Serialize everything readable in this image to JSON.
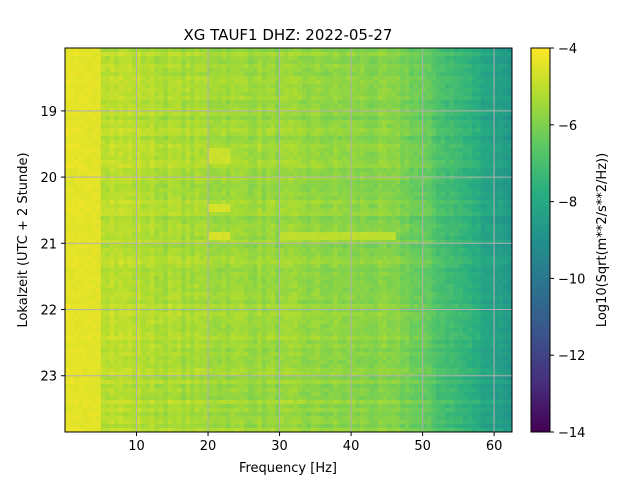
{
  "chart_data": {
    "type": "heatmap",
    "title": "XG TAUF1  DHZ: 2022-05-27",
    "xlabel": "Frequency [Hz]",
    "ylabel": "Lokalzeit (UTC + 2 Stunde)",
    "xlim": [
      0,
      62.5
    ],
    "ylim": [
      18.05,
      23.85
    ],
    "y_inverted": true,
    "x_ticks": [
      10,
      20,
      30,
      40,
      50,
      60
    ],
    "x_tick_labels": [
      "10",
      "20",
      "30",
      "40",
      "50",
      "60"
    ],
    "y_ticks": [
      19,
      20,
      21,
      22,
      23
    ],
    "y_tick_labels": [
      "19",
      "20",
      "21",
      "22",
      "23"
    ],
    "grid": true,
    "colormap": "viridis",
    "colorbar": {
      "label": "Log10(Sqrt(m**2/s**2/Hz))",
      "range": [
        -14,
        -4
      ],
      "ticks": [
        -4,
        -6,
        -8,
        -10,
        -12,
        -14
      ],
      "tick_labels": [
        "−4",
        "−6",
        "−8",
        "−10",
        "−12",
        "−14"
      ]
    },
    "frequency_profile": {
      "frequency": [
        0,
        5,
        10,
        15,
        20,
        25,
        30,
        35,
        40,
        45,
        48,
        50,
        52,
        55,
        58,
        60,
        62.5
      ],
      "level": [
        -4.6,
        -4.9,
        -5.1,
        -5.3,
        -5.4,
        -5.5,
        -5.6,
        -5.7,
        -5.8,
        -5.9,
        -6.1,
        -6.4,
        -6.8,
        -7.3,
        -7.9,
        -8.3,
        -8.6
      ]
    },
    "bright_bands": [
      {
        "f_min": 20,
        "f_max": 23,
        "t_min": 19.55,
        "t_max": 19.8,
        "level": -4.8
      },
      {
        "f_min": 20,
        "f_max": 23,
        "t_min": 20.4,
        "t_max": 20.55,
        "level": -4.6
      },
      {
        "f_min": 20,
        "f_max": 23,
        "t_min": 20.8,
        "t_max": 20.95,
        "level": -4.6
      },
      {
        "f_min": 30,
        "f_max": 46,
        "t_min": 20.8,
        "t_max": 20.95,
        "level": -5.0
      },
      {
        "f_min": 0,
        "f_max": 5,
        "t_min": 18.05,
        "t_max": 23.85,
        "level": -4.4
      }
    ]
  }
}
